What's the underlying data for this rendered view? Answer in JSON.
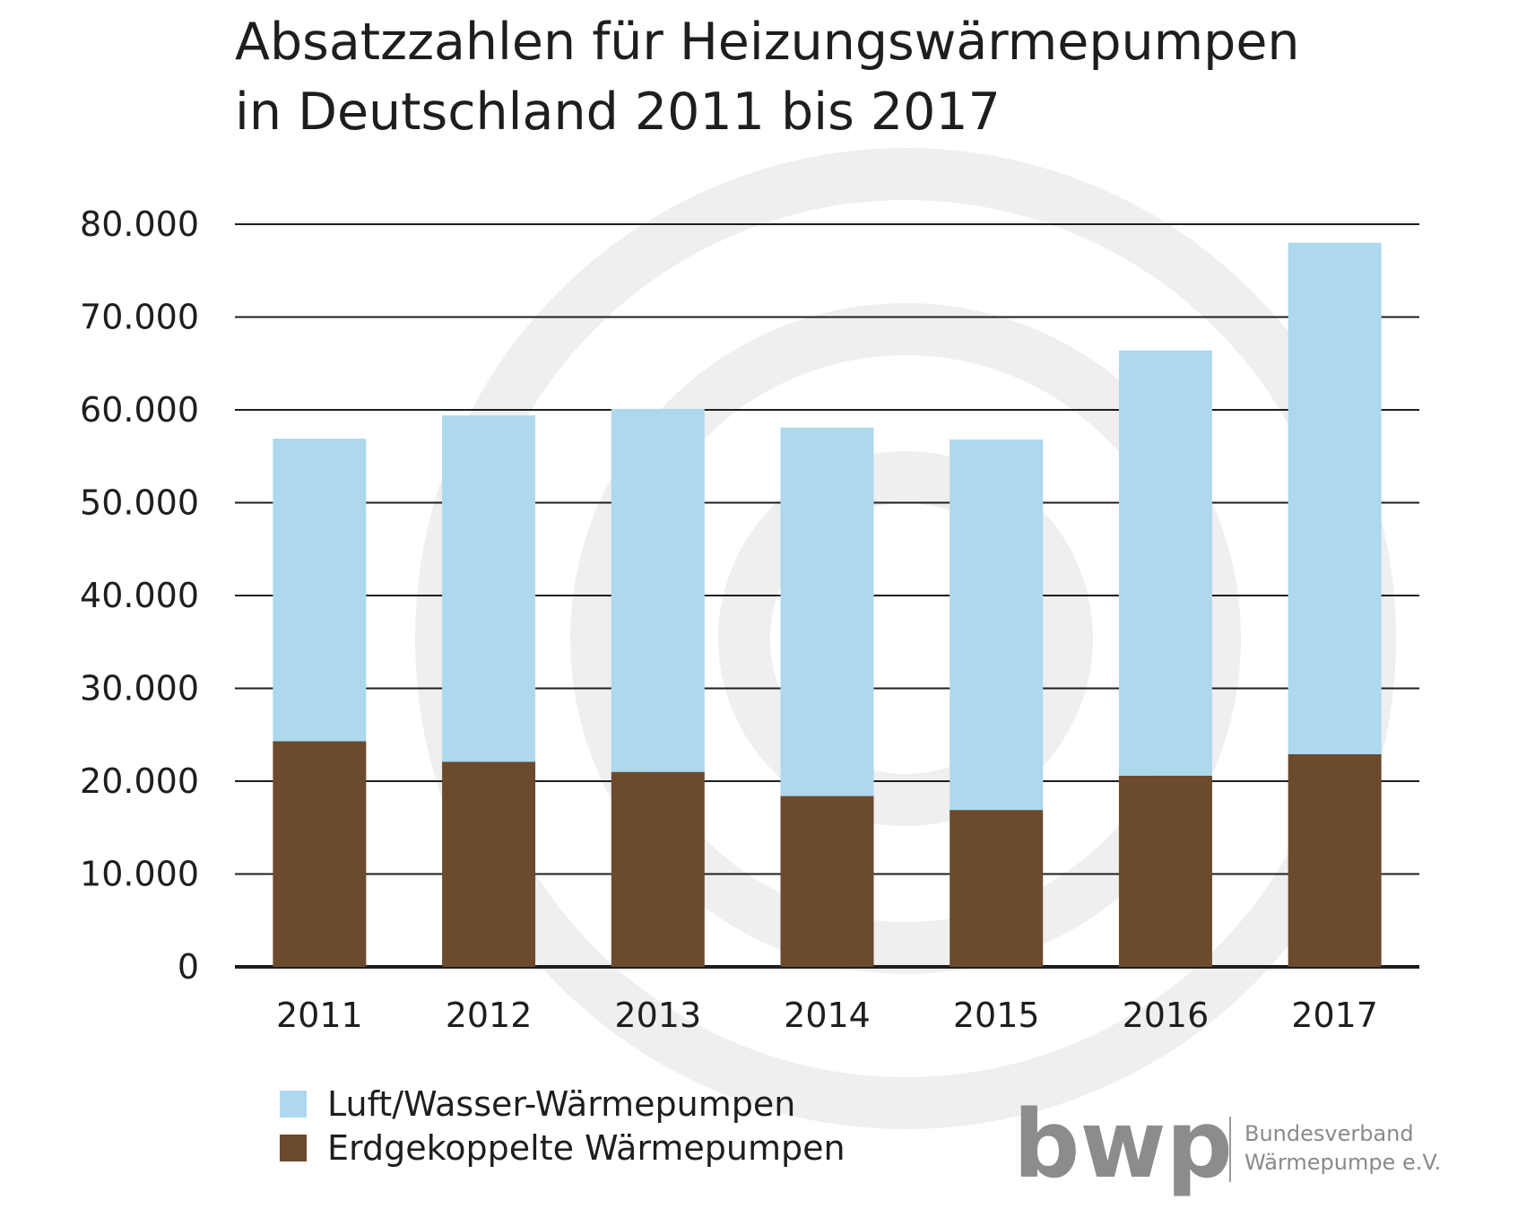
{
  "title_lines": [
    "Absatzzahlen für Heizungswärmepumpen",
    "in Deutschland 2011 bis 2017"
  ],
  "brand": {
    "logo": "bwp",
    "name_lines": [
      "Bundesverband",
      "Wärmepumpe e.V."
    ],
    "logo_color": "#8c8c8c"
  },
  "colors": {
    "air_water": "#add8ee",
    "ground_coupled": "#6b4a2e",
    "watermark": "#efefef"
  },
  "chart_data": {
    "type": "bar",
    "stacked": true,
    "categories": [
      "2011",
      "2012",
      "2013",
      "2014",
      "2015",
      "2016",
      "2017"
    ],
    "series": [
      {
        "name": "Erdgekoppelte Wärmepumpen",
        "values": [
          24300,
          22100,
          21000,
          18400,
          16900,
          20600,
          22900
        ],
        "color": "#6b4a2e"
      },
      {
        "name": "Luft/Wasser-Wärmepumpen",
        "values": [
          32600,
          37300,
          39100,
          39700,
          39900,
          45800,
          55100
        ],
        "color": "#add8ee"
      }
    ],
    "ylim": [
      0,
      80000
    ],
    "yticks": [
      "0",
      "10.000",
      "20.000",
      "30.000",
      "40.000",
      "50.000",
      "60.000",
      "70.000",
      "80.000"
    ],
    "grid": true,
    "legend_position": "bottom-left",
    "legend_order": [
      "Luft/Wasser-Wärmepumpen",
      "Erdgekoppelte Wärmepumpen"
    ]
  }
}
